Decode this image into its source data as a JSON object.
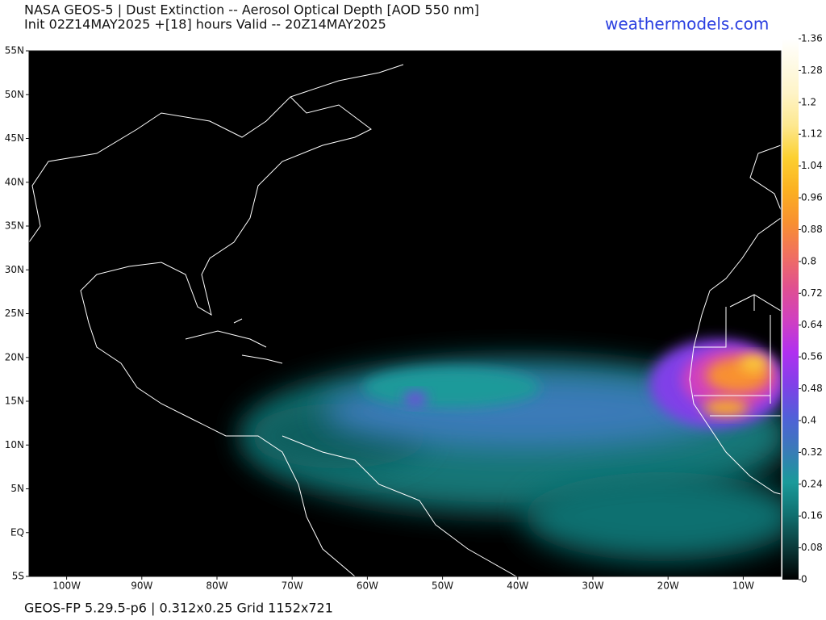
{
  "header": {
    "title": "NASA GEOS-5 | Dust Extinction -- Aerosol Optical Depth [AOD 550 nm]",
    "subtitle": "Init 02Z14MAY2025 +[18] hours Valid -- 20Z14MAY2025",
    "site": "weathermodels.com"
  },
  "map": {
    "xlim": [
      -105,
      -5
    ],
    "ylim": [
      -5,
      55
    ],
    "xticks": [
      {
        "value": -100,
        "label": "100W"
      },
      {
        "value": -90,
        "label": "90W"
      },
      {
        "value": -80,
        "label": "80W"
      },
      {
        "value": -70,
        "label": "70W"
      },
      {
        "value": -60,
        "label": "60W"
      },
      {
        "value": -50,
        "label": "50W"
      },
      {
        "value": -40,
        "label": "40W"
      },
      {
        "value": -30,
        "label": "30W"
      },
      {
        "value": -20,
        "label": "20W"
      },
      {
        "value": -10,
        "label": "10W"
      }
    ],
    "yticks": [
      {
        "value": 55,
        "label": "55N"
      },
      {
        "value": 50,
        "label": "50N"
      },
      {
        "value": 45,
        "label": "45N"
      },
      {
        "value": 40,
        "label": "40N"
      },
      {
        "value": 35,
        "label": "35N"
      },
      {
        "value": 30,
        "label": "30N"
      },
      {
        "value": 25,
        "label": "25N"
      },
      {
        "value": 20,
        "label": "20N"
      },
      {
        "value": 15,
        "label": "15N"
      },
      {
        "value": 10,
        "label": "10N"
      },
      {
        "value": 5,
        "label": "5N"
      },
      {
        "value": 0,
        "label": "EQ"
      },
      {
        "value": -5,
        "label": "5S"
      }
    ]
  },
  "colorbar": {
    "lim": [
      0,
      1.36
    ],
    "ticks": [
      0,
      0.08,
      0.16,
      0.24,
      0.32,
      0.4,
      0.48,
      0.56,
      0.64,
      0.72,
      0.8,
      0.88,
      0.96,
      1.04,
      1.12,
      1.2,
      1.28,
      1.36
    ]
  },
  "footer": "GEOS-FP 5.29.5-p6 | 0.312x0.25 Grid 1152x721"
}
